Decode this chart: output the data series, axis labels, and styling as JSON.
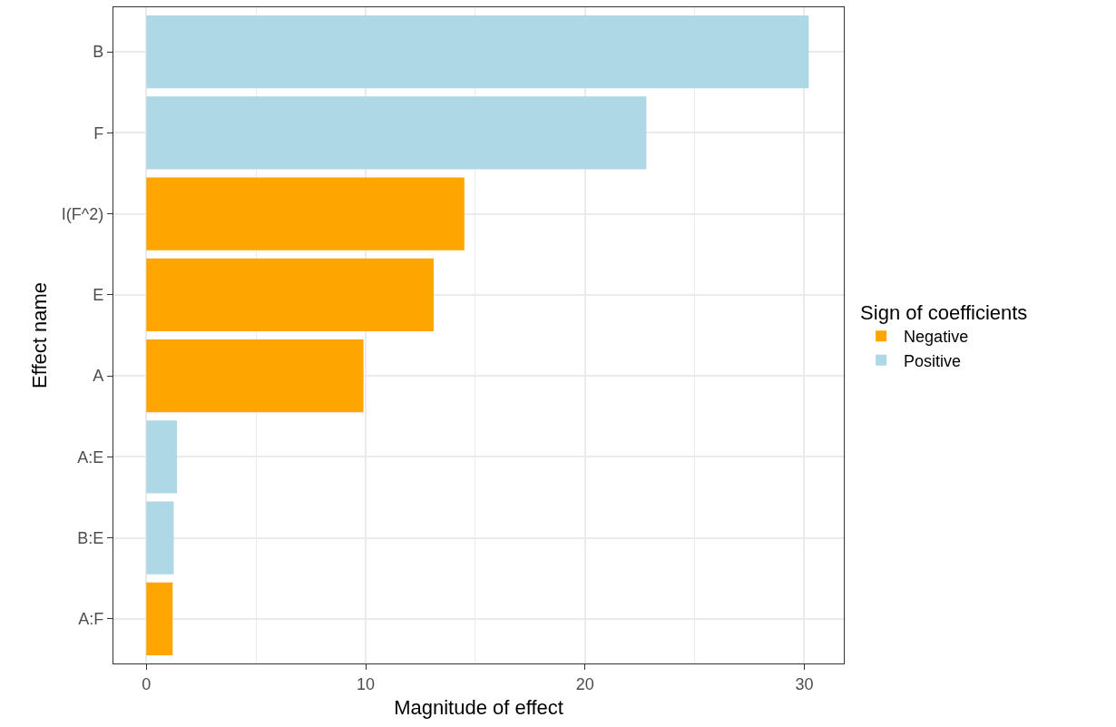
{
  "chart_data": {
    "type": "bar",
    "orientation": "horizontal",
    "xlabel": "Magnitude of effect",
    "ylabel": "Effect name",
    "legend_title": "Sign of coefficients",
    "categories": [
      "B",
      "F",
      "I(F^2)",
      "E",
      "A",
      "A:E",
      "B:E",
      "A:F"
    ],
    "series": [
      {
        "name": "Negative",
        "color": "#ffa500",
        "values": [
          null,
          null,
          14.5,
          13.1,
          9.9,
          null,
          null,
          1.2
        ]
      },
      {
        "name": "Positive",
        "color": "#add8e6",
        "values": [
          30.2,
          22.8,
          null,
          null,
          null,
          1.4,
          1.25,
          null
        ]
      }
    ],
    "xlim": [
      -1.5,
      31.8
    ],
    "xticks": [
      0,
      10,
      20,
      30
    ],
    "grid": true,
    "legend": "right"
  }
}
